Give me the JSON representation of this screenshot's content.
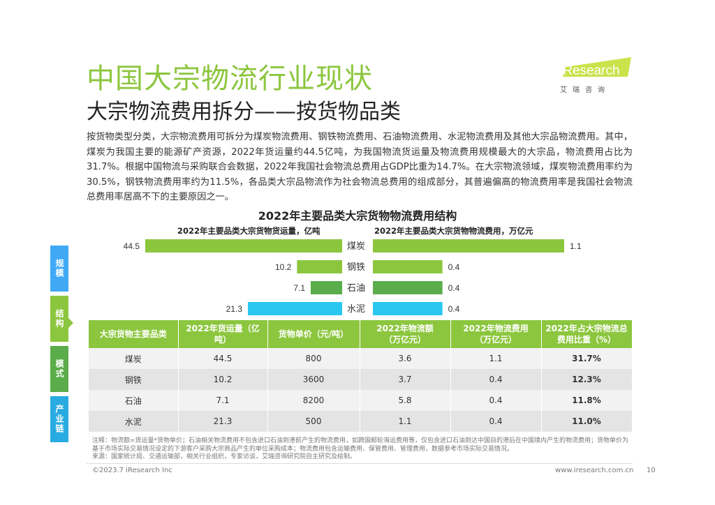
{
  "header": {
    "title": "中国大宗物流行业现状",
    "subtitle": "大宗物流费用拆分——按货物品类"
  },
  "logo": {
    "brand": "iResearch",
    "brand_cn": "艾瑞咨询"
  },
  "intro": "按货物类型分类，大宗物流费用可拆分为煤炭物流费用、钢铁物流费用、石油物流费用、水泥物流费用及其他大宗品物流费用。其中，煤炭为我国主要的能源矿产资源，2022年货运量约44.5亿吨，为我国物流货运量及物流费用规模最大的大宗品，物流费用占比为31.7%。根据中国物流与采购联合会数据，2022年我国社会物流总费用占GDP比重为14.7%。在大宗物流领域，煤炭物流费用率约为30.5%，钢铁物流费用率约为11.5%，各品类大宗品物流作为社会物流总费用的组成部分，其普遍偏高的物流费用率是我国社会物流总费用率居高不下的主要原因之一。",
  "side_nav": {
    "items": [
      {
        "label": "规模",
        "color": "#3fa9f5"
      },
      {
        "label": "结构",
        "color": "#8cc63e"
      },
      {
        "label": "模式",
        "color": "#5aad4a"
      },
      {
        "label": "产业链",
        "color": "#29abe2"
      }
    ]
  },
  "chart_data": {
    "type": "bar",
    "title": "2022年主要品类大宗货物物流费用结构",
    "categories": [
      "煤炭",
      "钢铁",
      "石油",
      "水泥"
    ],
    "series": [
      {
        "name": "2022年主要品类大宗货物货运量，亿吨",
        "values": [
          44.5,
          10.2,
          7.1,
          21.3
        ],
        "labels": [
          "44.5",
          "10.2",
          "7.1",
          "21.3"
        ],
        "colors": [
          "#8cc63e",
          "#8cc63e",
          "#5aad4a",
          "#29c7f0"
        ],
        "direction": "left"
      },
      {
        "name": "2022年主要品类大宗货物物流费用，万亿元",
        "values": [
          1.1,
          0.4,
          0.4,
          0.4
        ],
        "labels": [
          "1.1",
          "0.4",
          "0.4",
          "0.4"
        ],
        "colors": [
          "#8cc63e",
          "#8cc63e",
          "#5aad4a",
          "#29c7f0"
        ],
        "direction": "right"
      }
    ]
  },
  "table": {
    "headers": [
      "大宗货物主要品类",
      "2022年货运量（亿吨）",
      "货物单价（元/吨）",
      "2022年物流额\n（万亿元）",
      "2022年物流费用\n（万亿元）",
      "2022年占大宗物流总\n费用比重（%）"
    ],
    "rows": [
      [
        "煤炭",
        "44.5",
        "800",
        "3.6",
        "1.1",
        "31.7%"
      ],
      [
        "钢铁",
        "10.2",
        "3600",
        "3.7",
        "0.4",
        "12.3%"
      ],
      [
        "石油",
        "7.1",
        "8200",
        "5.8",
        "0.4",
        "11.8%"
      ],
      [
        "水泥",
        "21.3",
        "500",
        "1.1",
        "0.4",
        "11.0%"
      ]
    ]
  },
  "note": "注释：物流额=货运量*货物单价；石油相关物流费用不包含进口石油到港前产生的物流费用，如跨国邮轮海运费用等，仅包含进口石油到达中国目的港后在中国境内产生的物流费用；货物单价为基于市场实际交易情况设定的下游客户采购大宗商品产生的单位采购成本；物流费用包含运输费用、保管费用、管理费用，数据参考市场实际交易情况。",
  "source": "来源：国家统计局、交通运输部，相关行业组织，专家访谈，艾瑞咨询研究院自主研究及绘制。",
  "footer": {
    "copyright": "©2023.7 iResearch Inc",
    "url": "www.iresearch.com.cn",
    "page": "10"
  }
}
